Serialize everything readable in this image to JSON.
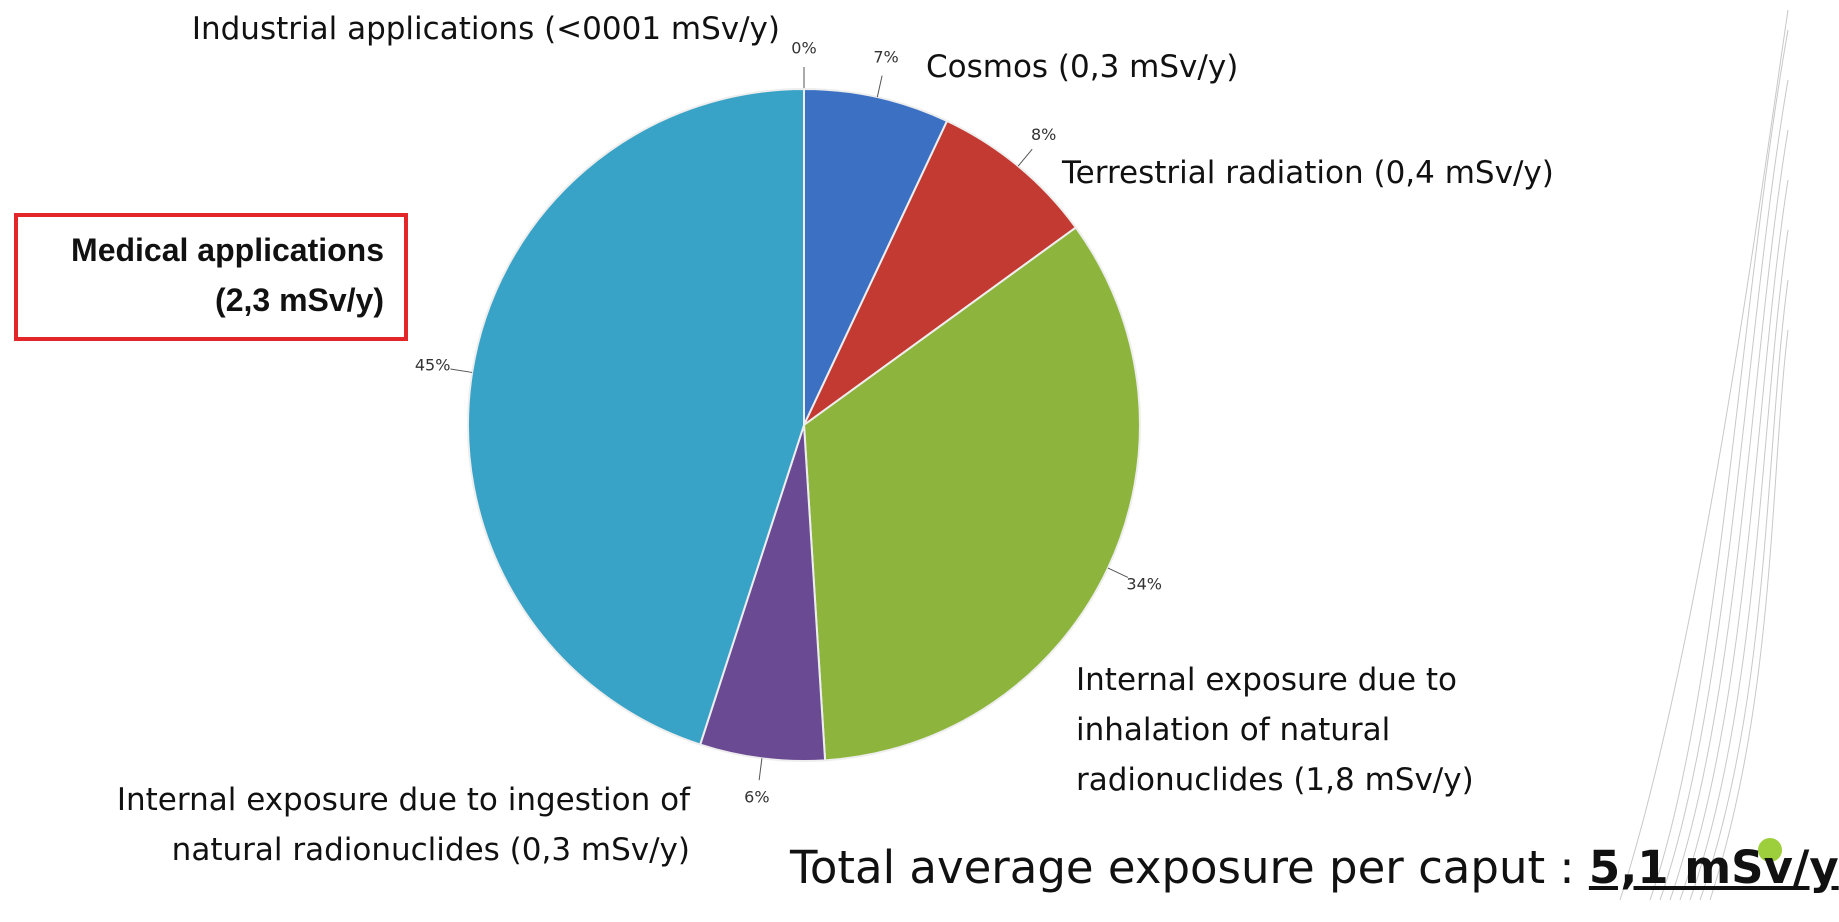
{
  "chart_data": {
    "type": "pie",
    "categories": [
      "Industrial applications (<0001  mSv/y)",
      "Cosmos  (0,3  mSv/y)",
      "Terrestrial radiation (0,4  mSv/y)",
      "Internal exposure due to inhalation of natural radionuclides (1,8 mSv/y)",
      "Internal exposure due to ingestion of natural radionuclides (0,3  mSv/y)",
      "Medical applications (2,3  mSv/y)"
    ],
    "values": [
      0,
      7,
      8,
      34,
      6,
      45
    ],
    "value_labels": [
      "0%",
      "7%",
      "8%",
      "34%",
      "6%",
      "45%"
    ],
    "colors": [
      "#9a9a9a",
      "#3b70c2",
      "#c23a31",
      "#8db53e",
      "#6a4b93",
      "#38a3c6"
    ],
    "total_label": "Total average exposure per caput : ",
    "total_value": "5,1 mSv/y"
  }
}
